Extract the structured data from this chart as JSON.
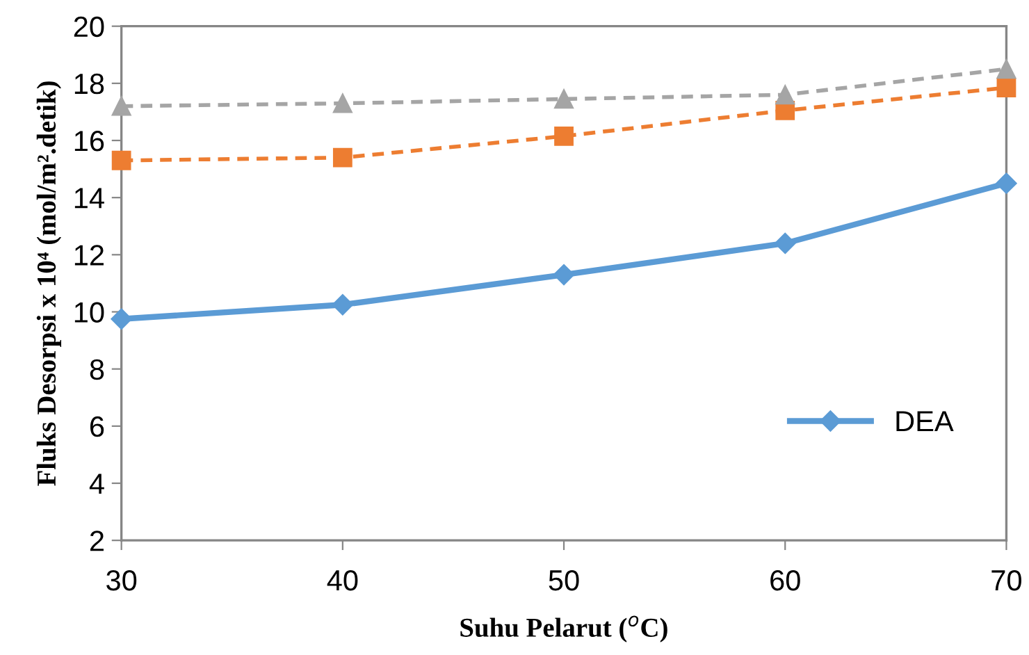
{
  "chart_data": {
    "type": "line",
    "xlabel": "Suhu Pelarut ($^{o}$C)",
    "ylabel": "Fluks Desorpsi x 10⁴ (mol/m².detik)",
    "x": [
      30,
      40,
      50,
      60,
      70
    ],
    "series": [
      {
        "name": "DEA",
        "color": "#5b9bd5",
        "values": [
          9.75,
          10.25,
          11.3,
          12.4,
          14.5
        ],
        "marker": "diamond",
        "line_style": "solid"
      },
      {
        "color": "#ed7d31",
        "values": [
          15.3,
          15.4,
          16.15,
          17.05,
          17.85
        ],
        "marker": "square",
        "line_style": "dashed"
      },
      {
        "color": "#a5a5a5",
        "values": [
          17.2,
          17.3,
          17.45,
          17.6,
          18.5
        ],
        "marker": "triangle",
        "line_style": "dashed"
      }
    ],
    "xlim": [
      30,
      70
    ],
    "xticks": [
      30,
      40,
      50,
      60,
      70
    ],
    "ylim": [
      2,
      20
    ],
    "yticks": [
      2,
      4,
      6,
      8,
      10,
      12,
      14,
      16,
      18,
      20
    ],
    "grid": false,
    "legend": "bottom right"
  }
}
